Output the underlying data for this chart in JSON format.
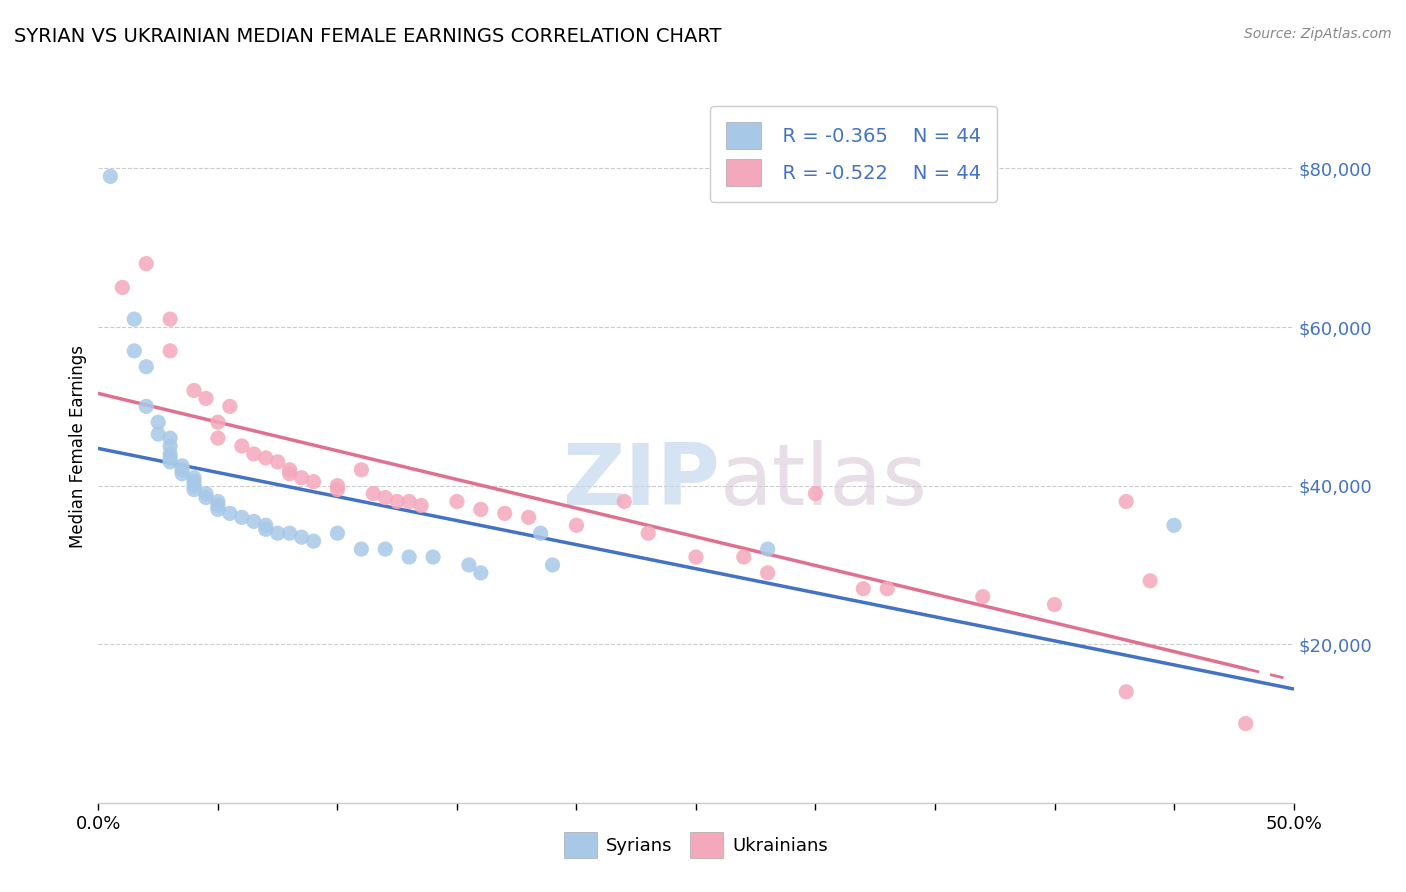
{
  "title": "SYRIAN VS UKRAINIAN MEDIAN FEMALE EARNINGS CORRELATION CHART",
  "source": "Source: ZipAtlas.com",
  "ylabel": "Median Female Earnings",
  "xlim": [
    0.0,
    0.5
  ],
  "ylim": [
    0,
    90000
  ],
  "yticks": [
    0,
    20000,
    40000,
    60000,
    80000
  ],
  "xtick_positions": [
    0.0,
    0.05,
    0.1,
    0.15,
    0.2,
    0.25,
    0.3,
    0.35,
    0.4,
    0.45,
    0.5
  ],
  "xtick_labels_show": {
    "0.0": "0.0%",
    "0.5": "50.0%"
  },
  "syrian_color": "#a8c8e8",
  "ukrainian_color": "#f4a8bc",
  "syrian_line_color": "#4472c4",
  "ukrainian_line_color": "#e07090",
  "watermark_zip": "ZIP",
  "watermark_atlas": "atlas",
  "legend_r_syrian": "R = -0.365",
  "legend_r_ukrainian": "R = -0.522",
  "legend_n": "N = 44",
  "legend_label_syrian": "Syrians",
  "legend_label_ukrainian": "Ukrainians",
  "syrian_points": [
    [
      0.005,
      79000
    ],
    [
      0.015,
      61000
    ],
    [
      0.015,
      57000
    ],
    [
      0.02,
      55000
    ],
    [
      0.02,
      50000
    ],
    [
      0.025,
      48000
    ],
    [
      0.025,
      46500
    ],
    [
      0.03,
      46000
    ],
    [
      0.03,
      45000
    ],
    [
      0.03,
      44000
    ],
    [
      0.03,
      43500
    ],
    [
      0.03,
      43000
    ],
    [
      0.035,
      42500
    ],
    [
      0.035,
      42000
    ],
    [
      0.035,
      41500
    ],
    [
      0.04,
      41000
    ],
    [
      0.04,
      40500
    ],
    [
      0.04,
      40000
    ],
    [
      0.04,
      39500
    ],
    [
      0.045,
      39000
    ],
    [
      0.045,
      38500
    ],
    [
      0.05,
      38000
    ],
    [
      0.05,
      37500
    ],
    [
      0.05,
      37000
    ],
    [
      0.055,
      36500
    ],
    [
      0.06,
      36000
    ],
    [
      0.065,
      35500
    ],
    [
      0.07,
      35000
    ],
    [
      0.07,
      34500
    ],
    [
      0.075,
      34000
    ],
    [
      0.08,
      34000
    ],
    [
      0.085,
      33500
    ],
    [
      0.09,
      33000
    ],
    [
      0.1,
      34000
    ],
    [
      0.11,
      32000
    ],
    [
      0.12,
      32000
    ],
    [
      0.13,
      31000
    ],
    [
      0.14,
      31000
    ],
    [
      0.155,
      30000
    ],
    [
      0.16,
      29000
    ],
    [
      0.185,
      34000
    ],
    [
      0.19,
      30000
    ],
    [
      0.28,
      32000
    ],
    [
      0.45,
      35000
    ]
  ],
  "ukrainian_points": [
    [
      0.01,
      65000
    ],
    [
      0.02,
      68000
    ],
    [
      0.03,
      61000
    ],
    [
      0.03,
      57000
    ],
    [
      0.04,
      52000
    ],
    [
      0.045,
      51000
    ],
    [
      0.05,
      48000
    ],
    [
      0.05,
      46000
    ],
    [
      0.055,
      50000
    ],
    [
      0.06,
      45000
    ],
    [
      0.065,
      44000
    ],
    [
      0.07,
      43500
    ],
    [
      0.075,
      43000
    ],
    [
      0.08,
      42000
    ],
    [
      0.08,
      41500
    ],
    [
      0.085,
      41000
    ],
    [
      0.09,
      40500
    ],
    [
      0.1,
      40000
    ],
    [
      0.1,
      39500
    ],
    [
      0.11,
      42000
    ],
    [
      0.115,
      39000
    ],
    [
      0.12,
      38500
    ],
    [
      0.125,
      38000
    ],
    [
      0.13,
      38000
    ],
    [
      0.135,
      37500
    ],
    [
      0.15,
      38000
    ],
    [
      0.16,
      37000
    ],
    [
      0.17,
      36500
    ],
    [
      0.18,
      36000
    ],
    [
      0.2,
      35000
    ],
    [
      0.22,
      38000
    ],
    [
      0.23,
      34000
    ],
    [
      0.25,
      31000
    ],
    [
      0.27,
      31000
    ],
    [
      0.28,
      29000
    ],
    [
      0.3,
      39000
    ],
    [
      0.32,
      27000
    ],
    [
      0.33,
      27000
    ],
    [
      0.37,
      26000
    ],
    [
      0.4,
      25000
    ],
    [
      0.43,
      38000
    ],
    [
      0.43,
      14000
    ],
    [
      0.44,
      28000
    ],
    [
      0.48,
      10000
    ]
  ]
}
